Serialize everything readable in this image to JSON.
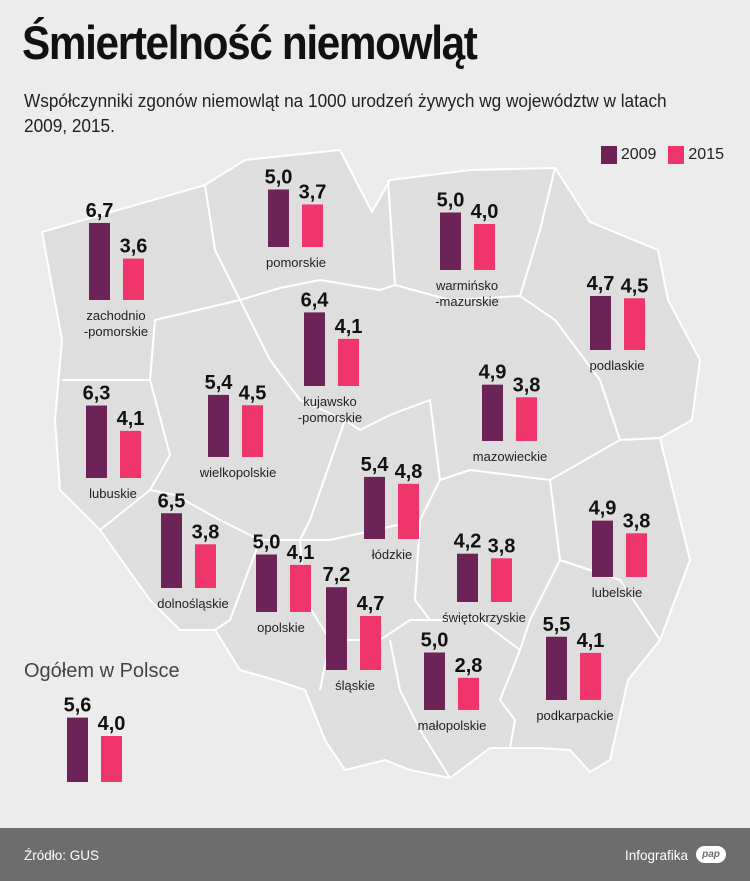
{
  "title": "Śmiertelność niemowląt",
  "subtitle": "Współczynniki zgonów niemowląt na 1000 urodzeń żywych wg województw w latach 2009, 2015.",
  "legend": [
    {
      "label": "2009",
      "color": "#6b2358"
    },
    {
      "label": "2015",
      "color": "#f0356c"
    }
  ],
  "colors": {
    "c2009": "#6b2358",
    "c2015": "#f0356c",
    "map_fill": "#dedede",
    "map_stroke": "#ffffff"
  },
  "chart_data": {
    "type": "bar",
    "categories": [
      "zachodnio-pomorskie",
      "pomorskie",
      "warmińsko-mazurskie",
      "podlaskie",
      "kujawsko-pomorskie",
      "lubuskie",
      "wielkopolskie",
      "mazowieckie",
      "łódzkie",
      "dolnośląskie",
      "opolskie",
      "śląskie",
      "świętokrzyskie",
      "lubelskie",
      "małopolskie",
      "podkarpackie",
      "Ogółem w Polsce"
    ],
    "series": [
      {
        "name": "2009",
        "values": [
          6.7,
          5.0,
          5.0,
          4.7,
          6.4,
          6.3,
          5.4,
          4.9,
          5.4,
          6.5,
          5.0,
          7.2,
          4.2,
          4.9,
          5.0,
          5.5,
          5.6
        ]
      },
      {
        "name": "2015",
        "values": [
          3.6,
          3.7,
          4.0,
          4.5,
          4.1,
          4.1,
          4.5,
          3.8,
          4.8,
          3.8,
          4.1,
          4.7,
          3.8,
          3.8,
          2.8,
          4.1,
          4.0
        ]
      }
    ],
    "groups": [
      {
        "label_lines": [
          "zachodnio",
          "-pomorskie"
        ],
        "v2009": "6,7",
        "v2015": "3,6"
      },
      {
        "label_lines": [
          "pomorskie"
        ],
        "v2009": "5,0",
        "v2015": "3,7"
      },
      {
        "label_lines": [
          "warmińsko",
          "-mazurskie"
        ],
        "v2009": "5,0",
        "v2015": "4,0"
      },
      {
        "label_lines": [
          "podlaskie"
        ],
        "v2009": "4,7",
        "v2015": "4,5"
      },
      {
        "label_lines": [
          "kujawsko",
          "-pomorskie"
        ],
        "v2009": "6,4",
        "v2015": "4,1"
      },
      {
        "label_lines": [
          "lubuskie"
        ],
        "v2009": "6,3",
        "v2015": "4,1"
      },
      {
        "label_lines": [
          "wielkopolskie"
        ],
        "v2009": "5,4",
        "v2015": "4,5"
      },
      {
        "label_lines": [
          "mazowieckie"
        ],
        "v2009": "4,9",
        "v2015": "3,8"
      },
      {
        "label_lines": [
          "łódzkie"
        ],
        "v2009": "5,4",
        "v2015": "4,8"
      },
      {
        "label_lines": [
          "dolnośląskie"
        ],
        "v2009": "6,5",
        "v2015": "3,8"
      },
      {
        "label_lines": [
          "opolskie"
        ],
        "v2009": "5,0",
        "v2015": "4,1"
      },
      {
        "label_lines": [
          "śląskie"
        ],
        "v2009": "7,2",
        "v2015": "4,7"
      },
      {
        "label_lines": [
          "świętokrzyskie"
        ],
        "v2009": "4,2",
        "v2015": "3,8"
      },
      {
        "label_lines": [
          "lubelskie"
        ],
        "v2009": "4,9",
        "v2015": "3,8"
      },
      {
        "label_lines": [
          "małopolskie"
        ],
        "v2009": "5,0",
        "v2015": "2,8"
      },
      {
        "label_lines": [
          "podkarpackie"
        ],
        "v2009": "5,5",
        "v2015": "4,1"
      },
      {
        "label_lines": [
          "Ogółem w Polsce"
        ],
        "v2009": "5,6",
        "v2015": "4,0"
      }
    ]
  },
  "footer": {
    "source": "Źródło: GUS",
    "brand": "Infografika",
    "logo_text": "pap"
  }
}
